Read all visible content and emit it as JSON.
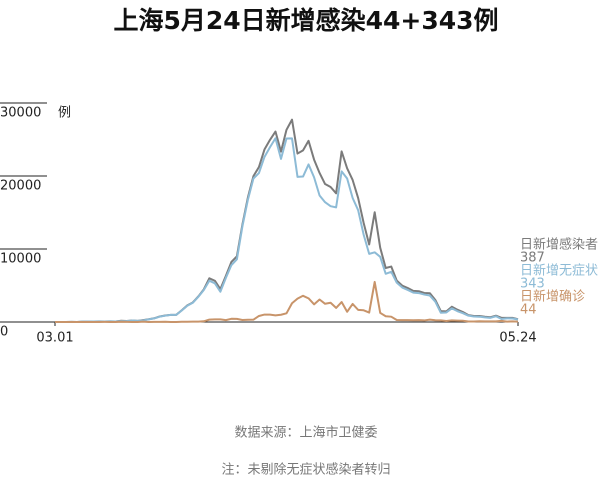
{
  "chart_data": {
    "type": "line",
    "title": "上海5月24日新增感染44+343例",
    "y_unit": "例",
    "source": "数据来源：上海市卫健委",
    "note": "注：未剔除无症状感染者转归",
    "categories": [
      "03.01",
      null,
      null,
      null,
      null,
      null,
      null,
      null,
      null,
      null,
      null,
      null,
      null,
      null,
      null,
      null,
      null,
      null,
      null,
      null,
      null,
      null,
      null,
      null,
      null,
      null,
      null,
      null,
      null,
      null,
      null,
      null,
      null,
      null,
      null,
      null,
      null,
      null,
      null,
      null,
      null,
      null,
      null,
      null,
      null,
      null,
      null,
      null,
      null,
      null,
      null,
      null,
      null,
      null,
      null,
      null,
      null,
      null,
      null,
      null,
      null,
      null,
      null,
      null,
      null,
      null,
      null,
      null,
      null,
      null,
      null,
      null,
      null,
      null,
      null,
      null,
      null,
      null,
      null,
      null,
      null,
      null,
      null,
      null,
      "05.24"
    ],
    "ylim": [
      0,
      30000
    ],
    "yticks": [
      0,
      10000,
      20000,
      30000
    ],
    "series": [
      {
        "name": "日新增感染者",
        "color": "#7b7b7b",
        "values": [
          2,
          2,
          5,
          19,
          2,
          48,
          55,
          65,
          80,
          75,
          83,
          65,
          169,
          139,
          202,
          158,
          260,
          374,
          509,
          758,
          896,
          981,
          983,
          1609,
          2269,
          2676,
          3500,
          4477,
          5982,
          5653,
          4502,
          6311,
          8226,
          9006,
          13354,
          17077,
          19982,
          21222,
          23624,
          24943,
          26087,
          23342,
          26330,
          27719,
          23072,
          23513,
          24820,
          22248,
          20416,
          18901,
          18495,
          17629,
          23370,
          21058,
          19455,
          16980,
          13562,
          10622,
          15032,
          10181,
          7394,
          7599,
          5669,
          4982,
          4651,
          4269,
          4214,
          3975,
          3947,
          3014,
          1487,
          1449,
          2096,
          1681,
          1369,
          938,
          823,
          823,
          719,
          658,
          868,
          570,
          558,
          562,
          387
        ]
      },
      {
        "name": "日新增无症状",
        "color": "#8dbbd6",
        "values": [
          1,
          1,
          3,
          16,
          2,
          45,
          51,
          62,
          76,
          64,
          78,
          64,
          128,
          130,
          197,
          150,
          203,
          366,
          492,
          734,
          865,
          977,
          979,
          1580,
          2231,
          2631,
          3450,
          4381,
          5656,
          5298,
          4144,
          6051,
          7788,
          8581,
          13086,
          16766,
          19660,
          20398,
          22609,
          23937,
          25173,
          22348,
          25141,
          25146,
          19872,
          19923,
          21582,
          19831,
          17332,
          16407,
          15861,
          15698,
          20634,
          19657,
          16983,
          15319,
          11956,
          9330,
          9545,
          8932,
          6606,
          6872,
          5395,
          4722,
          4390,
          4024,
          3961,
          3760,
          3625,
          2780,
          1259,
          1305,
          1869,
          1487,
          1203,
          869,
          746,
          727,
          637,
          570,
          784,
          412,
          503,
          480,
          343
        ]
      },
      {
        "name": "日新增确诊",
        "color": "#c8946a",
        "values": [
          1,
          1,
          2,
          3,
          0,
          3,
          4,
          3,
          4,
          11,
          5,
          1,
          41,
          9,
          5,
          8,
          57,
          8,
          17,
          24,
          31,
          4,
          4,
          29,
          38,
          45,
          50,
          96,
          326,
          355,
          358,
          260,
          438,
          425,
          268,
          311,
          322,
          824,
          1015,
          1006,
          914,
          994,
          1189,
          2573,
          3200,
          3590,
          3238,
          2417,
          3084,
          2494,
          2634,
          1931,
          2736,
          1401,
          2472,
          1661,
          1606,
          1292,
          5487,
          1249,
          788,
          727,
          274,
          260,
          261,
          245,
          253,
          215,
          322,
          234,
          228,
          144,
          227,
          194,
          166,
          69,
          77,
          96,
          82,
          88,
          84,
          158,
          55,
          82,
          44
        ]
      }
    ]
  }
}
